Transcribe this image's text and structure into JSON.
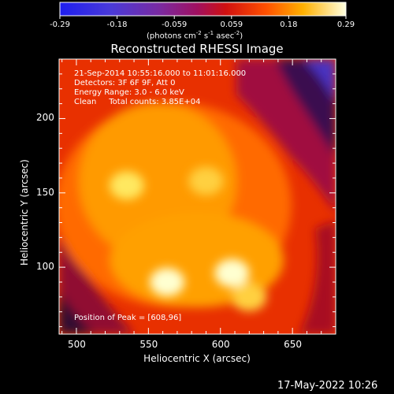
{
  "chart_data": {
    "type": "heatmap",
    "title": "Reconstructed RHESSI Image",
    "xlabel": "Heliocentric X (arcsec)",
    "ylabel": "Heliocentric Y (arcsec)",
    "xlim": [
      488,
      680
    ],
    "ylim": [
      55,
      240
    ],
    "x_ticks": [
      500,
      550,
      600,
      650
    ],
    "y_ticks": [
      100,
      150,
      200
    ],
    "colorbar": {
      "ticks": [
        "-0.29",
        "-0.18",
        "-0.059",
        "0.059",
        "0.18",
        "0.29"
      ],
      "unit_prefix": "(photons cm",
      "unit_sup1": "-2",
      "unit_mid": " s",
      "unit_sup2": "-1",
      "unit_mid2": " asec",
      "unit_sup3": "-2",
      "unit_suffix": ")",
      "range": [
        -0.29,
        0.29
      ]
    },
    "annotations": {
      "time_range": "21-Sep-2014 10:55:16.000 to 11:01:16.000",
      "detectors": "Detectors: 3F 6F 9F, Att 0",
      "energy": "Energy Range: 3.0 - 6.0 keV",
      "clean": "Clean     Total counts: 3.85E+04",
      "peak": "Position of Peak = [608,96]"
    },
    "sources": [
      {
        "x": 535,
        "y": 155,
        "value": 0.26
      },
      {
        "x": 590,
        "y": 158,
        "value": 0.22
      },
      {
        "x": 563,
        "y": 90,
        "value": 0.29
      },
      {
        "x": 608,
        "y": 96,
        "value": 0.29
      },
      {
        "x": 620,
        "y": 80,
        "value": 0.2
      }
    ],
    "grid": false
  },
  "timestamp": "17-May-2022 10:26"
}
